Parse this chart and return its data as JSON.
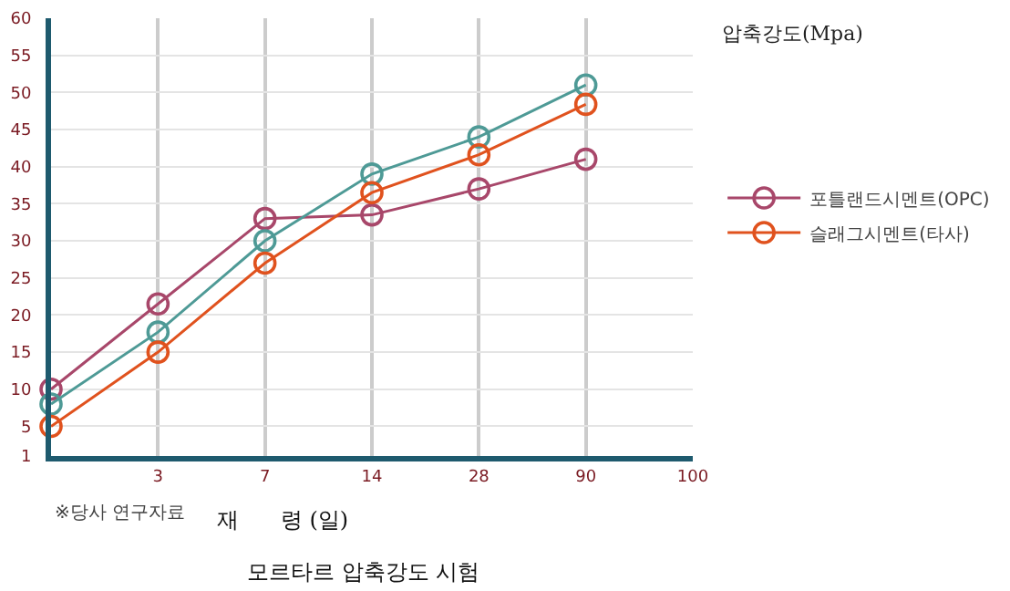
{
  "chart_data": {
    "type": "line",
    "title": "모르타르 압축강도 시험",
    "xlabel": "재      령 (일)",
    "ylabel": "압축강도(Mpa)",
    "annotations": [
      "※당사 연구자료"
    ],
    "categories": [
      null,
      "3",
      "7",
      "14",
      "28",
      "90",
      "100"
    ],
    "series": [
      {
        "name": "포틀랜드시멘트(OPC)",
        "color": "#a8476a",
        "values": [
          10,
          21.5,
          33,
          33.5,
          37,
          41,
          null
        ]
      },
      {
        "color": "#4e9a96",
        "values": [
          8,
          17.7,
          30,
          39,
          44,
          51,
          null
        ]
      },
      {
        "name": "슬래그시멘트(타사)",
        "color": "#e0521e",
        "values": [
          5,
          15,
          27,
          36.5,
          41.6,
          48.4,
          null
        ]
      }
    ],
    "ylim": [
      1,
      60
    ],
    "yticks": [
      1,
      5,
      10,
      15,
      20,
      25,
      30,
      35,
      40,
      45,
      50,
      55,
      60
    ],
    "grid": true,
    "legend": "right",
    "marker": "circle",
    "line_style": "solid"
  }
}
